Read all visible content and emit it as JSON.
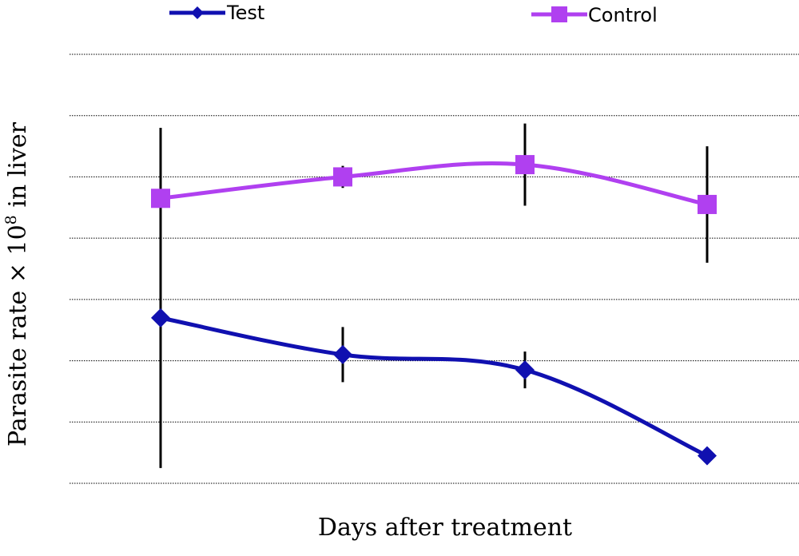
{
  "chart_data": {
    "type": "line",
    "title": "",
    "xlabel": "Days after treatment",
    "ylabel_main": "Parasite rate × 10",
    "ylabel_exponent": "8",
    "ylabel_suffix": " in liver",
    "categories": [
      "",
      "",
      "",
      ""
    ],
    "ylim": [
      0,
      7
    ],
    "grid": true,
    "legend_position": "top",
    "series": [
      {
        "name": "Test",
        "color": "#1010b0",
        "marker": "diamond",
        "values": [
          2.7,
          2.1,
          1.85,
          0.45
        ],
        "errors": [
          2.45,
          0.45,
          0.3,
          0
        ]
      },
      {
        "name": "Control",
        "color": "#b040f0",
        "marker": "square",
        "values": [
          4.65,
          5.0,
          5.2,
          4.55
        ],
        "errors": [
          1.15,
          0.18,
          0.67,
          0.95
        ]
      }
    ]
  }
}
